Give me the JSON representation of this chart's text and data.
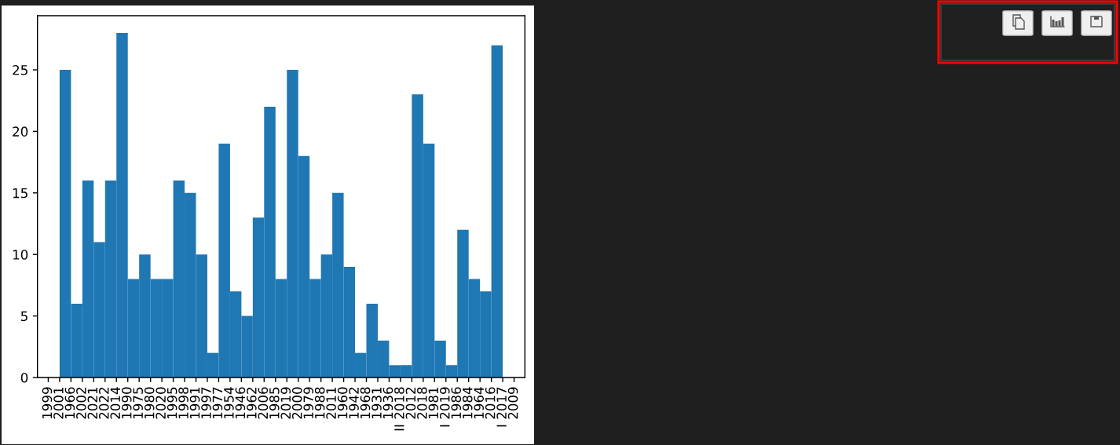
{
  "chart_data": {
    "type": "bar",
    "categories": [
      "1999",
      null,
      "2001",
      null,
      "1966",
      null,
      "2002",
      null,
      "2021",
      null,
      "2022",
      null,
      "2014",
      null,
      "1990",
      null,
      "1975",
      null,
      "1980",
      null,
      "2020",
      null,
      "1995",
      null,
      "1998",
      null,
      "1991",
      null,
      "1997",
      null,
      "1977",
      null,
      "1954",
      null,
      "1946",
      null,
      "1962",
      null,
      "2006",
      null,
      "1985",
      null,
      "2019",
      null,
      "2000",
      null,
      "1979",
      null,
      "1988",
      null,
      "2011",
      null,
      "1960",
      null,
      "1942",
      null,
      "1968",
      null,
      "1931",
      null,
      "1936",
      null,
      "II 2018",
      null,
      "2012",
      null,
      "2018",
      null,
      "1981",
      null,
      "I 2019",
      null,
      "1986",
      null,
      "1984",
      null,
      "1964",
      null,
      "2016",
      null,
      "I 2017",
      null,
      "2009"
    ],
    "values": [
      null,
      null,
      null,
      25,
      null,
      6,
      null,
      16,
      null,
      11,
      null,
      16,
      null,
      28,
      null,
      8,
      null,
      10,
      null,
      8,
      null,
      8,
      null,
      16,
      null,
      15,
      null,
      10,
      null,
      2,
      null,
      19,
      null,
      7,
      null,
      5,
      null,
      13,
      null,
      22,
      null,
      8,
      null,
      25,
      null,
      18,
      null,
      8,
      null,
      10,
      null,
      15,
      null,
      9,
      null,
      2,
      null,
      6,
      null,
      3,
      null,
      1,
      null,
      1,
      null,
      23,
      null,
      19,
      null,
      3,
      null,
      1,
      null,
      12,
      null,
      8,
      null,
      7,
      null,
      27,
      null,
      null,
      null
    ],
    "color": "#1f77b4",
    "ylim": [
      0,
      29.4
    ],
    "yticks": [
      0,
      5,
      10,
      15,
      20,
      25
    ]
  }
}
